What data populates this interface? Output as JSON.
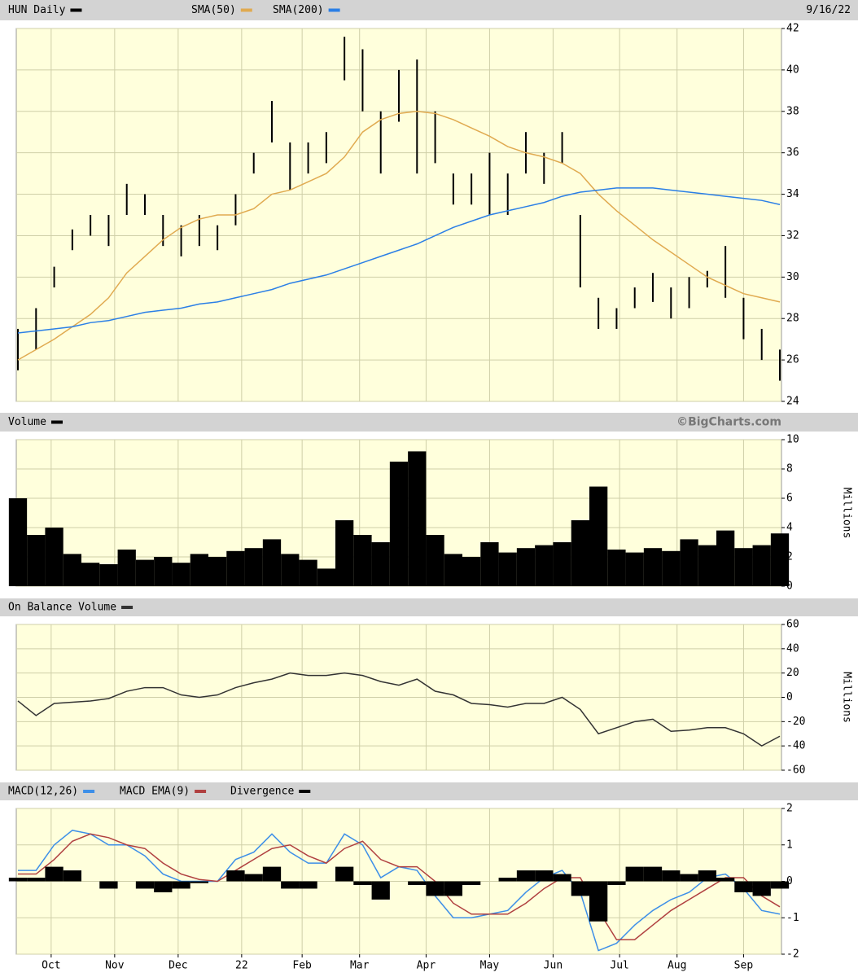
{
  "chart_data": [
    {
      "type": "ohlc",
      "date": "9/16/22",
      "x": [
        0,
        6,
        12,
        18,
        24,
        30,
        36,
        42,
        48,
        54,
        60,
        66,
        72,
        78,
        84,
        90,
        96,
        102,
        108,
        114,
        120,
        126,
        132,
        138,
        144,
        150,
        156,
        162,
        168,
        174,
        180,
        186,
        192,
        198,
        204,
        210,
        216,
        222,
        228,
        234,
        240,
        246,
        252
      ],
      "xlim": [
        0,
        252
      ],
      "ylim": [
        24,
        42
      ],
      "yticks": [
        24,
        26,
        28,
        30,
        32,
        34,
        36,
        38,
        40,
        42
      ],
      "series": [
        {
          "name": "HUN Daily",
          "color": "#000000",
          "high": [
            27.5,
            28.5,
            30.5,
            32.3,
            33,
            33,
            34.5,
            34,
            33,
            32.5,
            33,
            32.5,
            34,
            36,
            38.5,
            36.5,
            36.5,
            37,
            41.6,
            41,
            38,
            40,
            40.5,
            38,
            35,
            35,
            36,
            35,
            37,
            36,
            37,
            33,
            29,
            28.5,
            29.5,
            30.2,
            29.5,
            30,
            30.3,
            31.5,
            29,
            27.5,
            26.5
          ],
          "low": [
            25.5,
            26.5,
            29.5,
            31.3,
            32,
            31.5,
            33,
            33,
            31.5,
            31,
            31.5,
            31.3,
            32.5,
            35,
            36.5,
            34.2,
            35,
            35.5,
            39.5,
            38,
            35,
            37.5,
            35,
            35.5,
            33.5,
            33.5,
            33,
            33,
            35,
            34.5,
            35.5,
            29.5,
            27.5,
            27.5,
            28.5,
            28.8,
            28,
            28.5,
            29.5,
            29,
            27,
            26,
            25
          ]
        },
        {
          "name": "SMA(50)",
          "color": "#e0aa50",
          "values": [
            26,
            26.5,
            27,
            27.6,
            28.2,
            29,
            30.2,
            31,
            31.8,
            32.4,
            32.8,
            33,
            33,
            33.3,
            34,
            34.2,
            34.6,
            35,
            35.8,
            37,
            37.6,
            37.9,
            38,
            37.9,
            37.6,
            37.2,
            36.8,
            36.3,
            36,
            35.8,
            35.5,
            35,
            34,
            33.2,
            32.5,
            31.8,
            31.2,
            30.6,
            30,
            29.6,
            29.2,
            29,
            28.8
          ]
        },
        {
          "name": "SMA(200)",
          "color": "#2b7fe6",
          "values": [
            27.3,
            27.4,
            27.5,
            27.6,
            27.8,
            27.9,
            28.1,
            28.3,
            28.4,
            28.5,
            28.7,
            28.8,
            29,
            29.2,
            29.4,
            29.7,
            29.9,
            30.1,
            30.4,
            30.7,
            31,
            31.3,
            31.6,
            32,
            32.4,
            32.7,
            33,
            33.2,
            33.4,
            33.6,
            33.9,
            34.1,
            34.2,
            34.3,
            34.3,
            34.3,
            34.2,
            34.1,
            34,
            33.9,
            33.8,
            33.7,
            33.5
          ]
        }
      ]
    },
    {
      "type": "bar",
      "source": "©BigCharts.com",
      "y_label": "Millions",
      "x": [
        0,
        6,
        12,
        18,
        24,
        30,
        36,
        42,
        48,
        54,
        60,
        66,
        72,
        78,
        84,
        90,
        96,
        102,
        108,
        114,
        120,
        126,
        132,
        138,
        144,
        150,
        156,
        162,
        168,
        174,
        180,
        186,
        192,
        198,
        204,
        210,
        216,
        222,
        228,
        234,
        240,
        246,
        252
      ],
      "xlim": [
        0,
        252
      ],
      "ylim": [
        0,
        10
      ],
      "yticks": [
        0,
        2,
        4,
        6,
        8,
        10
      ],
      "series": [
        {
          "name": "Volume",
          "color": "#000000",
          "values": [
            6,
            3.5,
            4,
            2.2,
            1.6,
            1.5,
            2.5,
            1.8,
            2,
            1.6,
            2.2,
            2,
            2.4,
            2.6,
            3.2,
            2.2,
            1.8,
            1.2,
            4.5,
            3.5,
            3,
            8.5,
            9.2,
            3.5,
            2.2,
            2,
            3,
            2.3,
            2.6,
            2.8,
            3,
            4.5,
            6.8,
            2.5,
            2.3,
            2.6,
            2.4,
            3.2,
            2.8,
            3.8,
            2.6,
            2.8,
            3.6
          ]
        }
      ]
    },
    {
      "type": "line",
      "y_label": "Millions",
      "x": [
        0,
        6,
        12,
        18,
        24,
        30,
        36,
        42,
        48,
        54,
        60,
        66,
        72,
        78,
        84,
        90,
        96,
        102,
        108,
        114,
        120,
        126,
        132,
        138,
        144,
        150,
        156,
        162,
        168,
        174,
        180,
        186,
        192,
        198,
        204,
        210,
        216,
        222,
        228,
        234,
        240,
        246,
        252
      ],
      "xlim": [
        0,
        252
      ],
      "ylim": [
        -60,
        60
      ],
      "yticks": [
        -60,
        -40,
        -20,
        0,
        20,
        40,
        60
      ],
      "series": [
        {
          "name": "On Balance Volume",
          "color": "#333333",
          "values": [
            -3,
            -15,
            -5,
            -4,
            -3,
            -1,
            5,
            8,
            8,
            2,
            0,
            2,
            8,
            12,
            15,
            20,
            18,
            18,
            20,
            18,
            13,
            10,
            15,
            5,
            2,
            -5,
            -6,
            -8,
            -5,
            -5,
            0,
            -10,
            -30,
            -25,
            -20,
            -18,
            -28,
            -27,
            -25,
            -25,
            -30,
            -40,
            -32
          ]
        }
      ]
    },
    {
      "type": "macd",
      "x": [
        0,
        6,
        12,
        18,
        24,
        30,
        36,
        42,
        48,
        54,
        60,
        66,
        72,
        78,
        84,
        90,
        96,
        102,
        108,
        114,
        120,
        126,
        132,
        138,
        144,
        150,
        156,
        162,
        168,
        174,
        180,
        186,
        192,
        198,
        204,
        210,
        216,
        222,
        228,
        234,
        240,
        246,
        252
      ],
      "xlim": [
        0,
        252
      ],
      "ylim": [
        -2,
        2
      ],
      "yticks": [
        -2,
        -1,
        0,
        1,
        2
      ],
      "xticks": [
        {
          "value": 11,
          "label": "Oct"
        },
        {
          "value": 32,
          "label": "Nov"
        },
        {
          "value": 53,
          "label": "Dec"
        },
        {
          "value": 74,
          "label": "22"
        },
        {
          "value": 94,
          "label": "Feb"
        },
        {
          "value": 113,
          "label": "Mar"
        },
        {
          "value": 135,
          "label": "Apr"
        },
        {
          "value": 156,
          "label": "May"
        },
        {
          "value": 177,
          "label": "Jun"
        },
        {
          "value": 199,
          "label": "Jul"
        },
        {
          "value": 218,
          "label": "Aug"
        },
        {
          "value": 240,
          "label": "Sep"
        }
      ],
      "series": [
        {
          "name": "MACD(12,26)",
          "color": "#3d8fe8",
          "values": [
            0.3,
            0.3,
            1.0,
            1.4,
            1.3,
            1.0,
            1.0,
            0.7,
            0.2,
            0.0,
            0.0,
            0.0,
            0.6,
            0.8,
            1.3,
            0.8,
            0.5,
            0.5,
            1.3,
            1.0,
            0.1,
            0.4,
            0.3,
            -0.4,
            -1.0,
            -1.0,
            -0.9,
            -0.8,
            -0.3,
            0.1,
            0.3,
            -0.3,
            -1.9,
            -1.7,
            -1.2,
            -0.8,
            -0.5,
            -0.3,
            0.1,
            0.2,
            -0.2,
            -0.8,
            -0.9
          ]
        },
        {
          "name": "MACD EMA(9)",
          "color": "#b04040",
          "values": [
            0.2,
            0.2,
            0.6,
            1.1,
            1.3,
            1.2,
            1.0,
            0.9,
            0.5,
            0.2,
            0.05,
            0.0,
            0.3,
            0.6,
            0.9,
            1.0,
            0.7,
            0.5,
            0.9,
            1.1,
            0.6,
            0.4,
            0.4,
            0.0,
            -0.6,
            -0.9,
            -0.9,
            -0.9,
            -0.6,
            -0.2,
            0.1,
            0.1,
            -0.8,
            -1.6,
            -1.6,
            -1.2,
            -0.8,
            -0.5,
            -0.2,
            0.1,
            0.1,
            -0.4,
            -0.7
          ]
        },
        {
          "name": "Divergence",
          "color": "#000000",
          "type": "bar",
          "values": [
            0.1,
            0.1,
            0.4,
            0.3,
            0.0,
            -0.2,
            0.0,
            -0.2,
            -0.3,
            -0.2,
            -0.05,
            0.0,
            0.3,
            0.2,
            0.4,
            -0.2,
            -0.2,
            0.0,
            0.4,
            -0.1,
            -0.5,
            0.0,
            -0.1,
            -0.4,
            -0.4,
            -0.1,
            0.0,
            0.1,
            0.3,
            0.3,
            0.2,
            -0.4,
            -1.1,
            -0.1,
            0.4,
            0.4,
            0.3,
            0.2,
            0.3,
            0.1,
            -0.3,
            -0.4,
            -0.2
          ]
        }
      ]
    }
  ]
}
